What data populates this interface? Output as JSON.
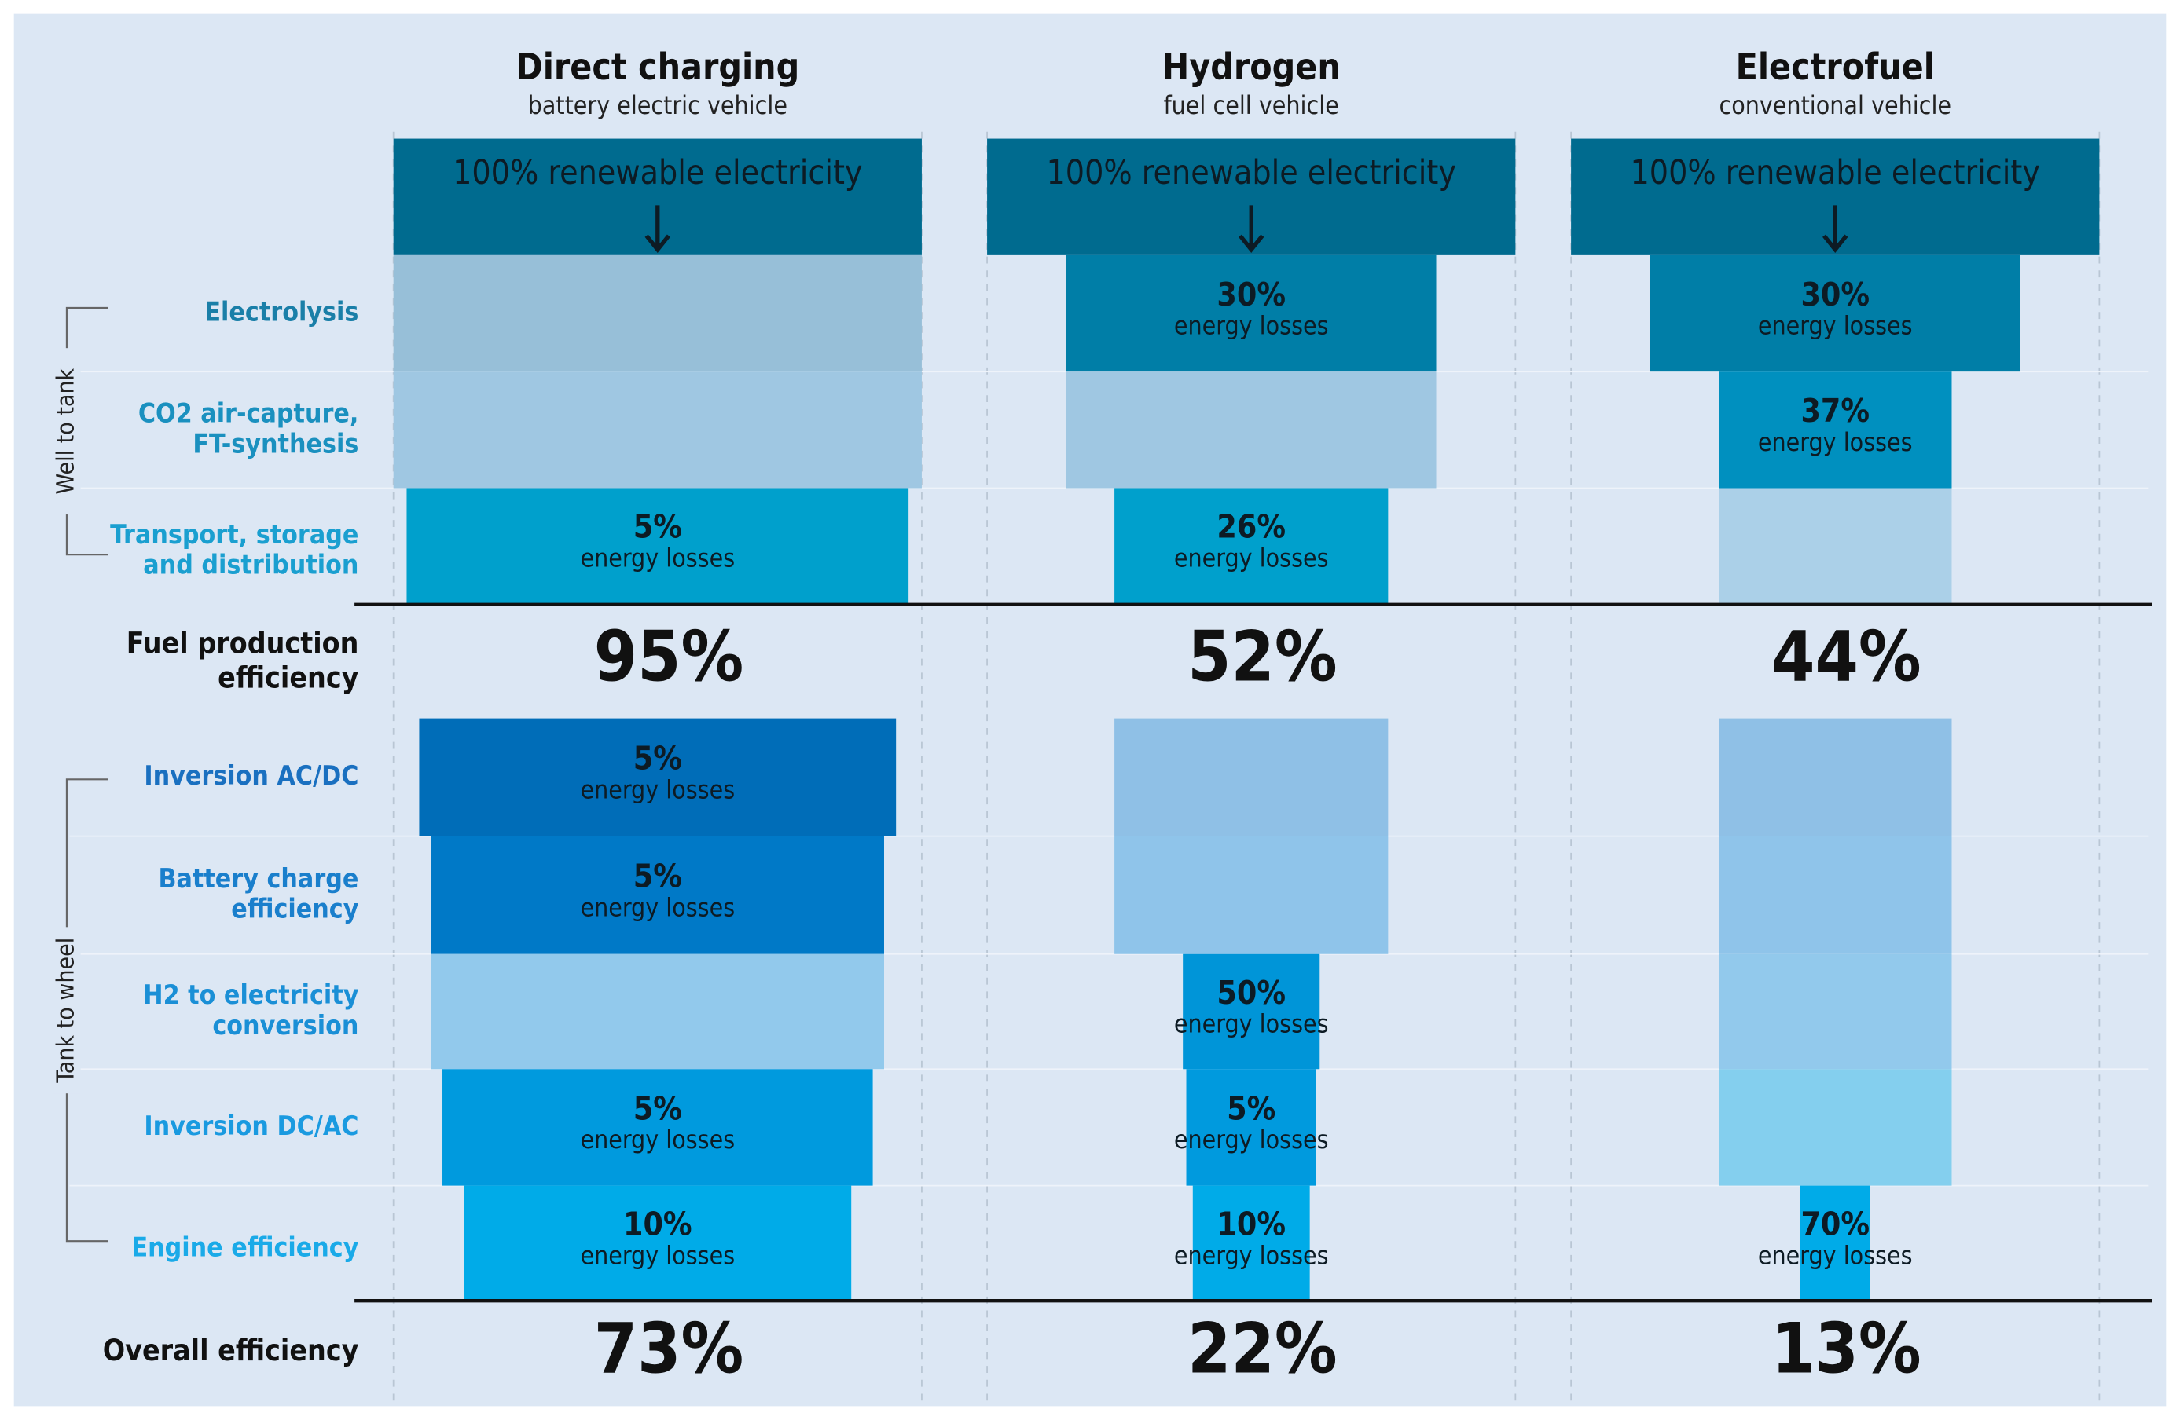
{
  "chart_data": {
    "type": "funnel",
    "source_label": "100% renewable electricity",
    "source_color": "#006b8f",
    "loss_caption": "energy losses",
    "groups": [
      "Well to tank",
      "Tank to wheel"
    ],
    "stages": [
      {
        "label": [
          "Electrolysis"
        ],
        "color": "#007ea7",
        "pale_color": "#97bfd8",
        "label_color": "#1a7fa8"
      },
      {
        "label": [
          "CO2 air-capture,",
          "FT-synthesis"
        ],
        "color": "#0090bf",
        "pale_color": "#9fc7e2",
        "label_color": "#1a90bf"
      },
      {
        "label": [
          "Transport, storage",
          "and distribution"
        ],
        "color": "#00a0cc",
        "pale_color": "#abd0e8",
        "label_color": "#1a9fd0"
      },
      {
        "label": [
          "Inversion AC/DC"
        ],
        "color": "#006db8",
        "pale_color": "#8fc0e6",
        "label_color": "#1a70c0"
      },
      {
        "label": [
          "Battery charge",
          "efficiency"
        ],
        "color": "#0079c7",
        "pale_color": "#8fc4ea",
        "label_color": "#1a7fcc"
      },
      {
        "label": [
          "H2 to electricity",
          "conversion"
        ],
        "color": "#0095d8",
        "pale_color": "#92c9ec",
        "label_color": "#1a8fd6"
      },
      {
        "label": [
          "Inversion DC/AC"
        ],
        "color": "#009ade",
        "pale_color": "#84cfee",
        "label_color": "#1a9ae0"
      },
      {
        "label": [
          "Engine efficiency"
        ],
        "color": "#00abe8",
        "pale_color": "#84d2f0",
        "label_color": "#1aaae8"
      }
    ],
    "series": [
      {
        "name": "Direct charging",
        "subtitle": "battery electric vehicle",
        "losses": [
          null,
          null,
          5,
          5,
          5,
          null,
          5,
          10
        ],
        "loss_labels": [
          null,
          null,
          "5%",
          "5%",
          "5%",
          null,
          "5%",
          "10%"
        ]
      },
      {
        "name": "Hydrogen",
        "subtitle": "fuel cell vehicle",
        "losses": [
          30,
          null,
          26,
          null,
          null,
          50,
          5,
          10
        ],
        "loss_labels": [
          "30%",
          null,
          "26%",
          null,
          null,
          "50%",
          "5%",
          "10%"
        ]
      },
      {
        "name": "Electrofuel",
        "subtitle": "conventional vehicle",
        "losses": [
          30,
          37,
          null,
          null,
          null,
          null,
          null,
          70
        ],
        "loss_labels": [
          "30%",
          "37%",
          null,
          null,
          null,
          null,
          null,
          "70%"
        ]
      }
    ],
    "fuel_efficiency": {
      "label": [
        "Fuel production",
        "efficiency"
      ],
      "values": [
        95,
        52,
        44
      ],
      "value_labels": [
        "95%",
        "52%",
        "44%"
      ]
    },
    "overall_efficiency": {
      "label": [
        "Overall efficiency"
      ],
      "values": [
        73,
        22,
        13
      ],
      "value_labels": [
        "73%",
        "22%",
        "13%"
      ]
    }
  }
}
